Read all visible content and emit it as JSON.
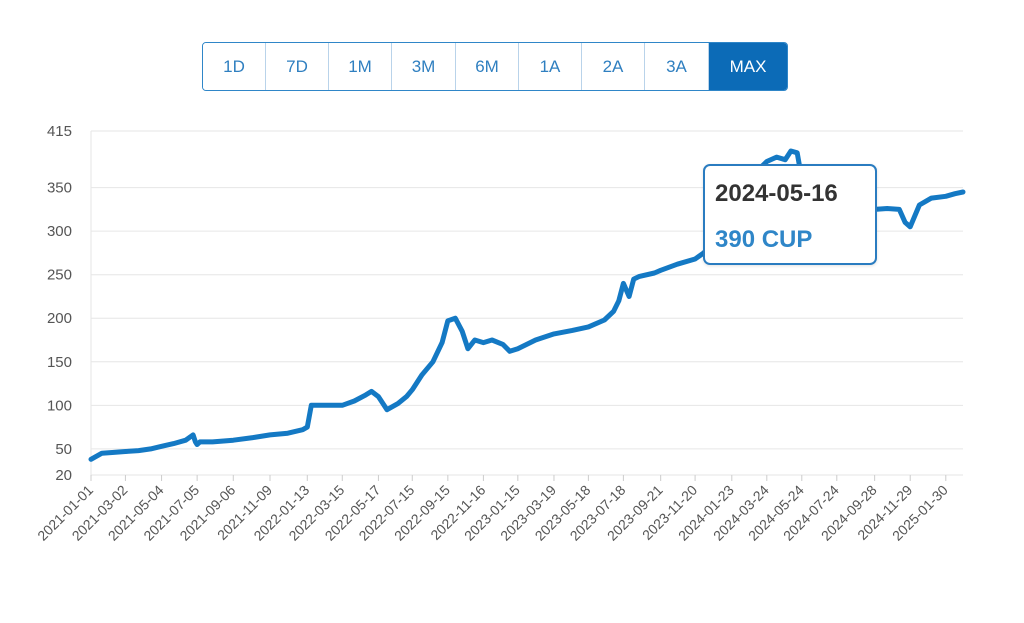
{
  "range_selector": {
    "buttons": [
      "1D",
      "7D",
      "1M",
      "3M",
      "6M",
      "1A",
      "2A",
      "3A",
      "MAX"
    ],
    "active": "MAX"
  },
  "colors": {
    "accent": "#0c6bb7",
    "line": "#1479c4",
    "grid": "#e6e6e6",
    "tooltip_border": "#2a7cc0"
  },
  "tooltip": {
    "date": "2024-05-16",
    "value": "390 CUP"
  },
  "chart_data": {
    "type": "line",
    "title": "",
    "xlabel": "",
    "ylabel": "",
    "grid": true,
    "ylim": [
      20,
      415
    ],
    "y_ticks": [
      20,
      50,
      100,
      150,
      200,
      250,
      300,
      350,
      415
    ],
    "x_ticks": [
      "2021-01-01",
      "2021-03-02",
      "2021-05-04",
      "2021-07-05",
      "2021-09-06",
      "2021-11-09",
      "2022-01-13",
      "2022-03-15",
      "2022-05-17",
      "2022-07-15",
      "2022-09-15",
      "2022-11-16",
      "2023-01-15",
      "2023-03-19",
      "2023-05-18",
      "2023-07-18",
      "2023-09-21",
      "2023-11-20",
      "2024-01-23",
      "2024-03-24",
      "2024-05-24",
      "2024-07-24",
      "2024-09-28",
      "2024-11-29",
      "2025-01-30"
    ],
    "series": [
      {
        "x": [
          "2021-01-01",
          "2021-01-20",
          "2021-02-10",
          "2021-03-02",
          "2021-03-25",
          "2021-04-15",
          "2021-05-04",
          "2021-05-25",
          "2021-06-15",
          "2021-06-28",
          "2021-07-02",
          "2021-07-05",
          "2021-07-10",
          "2021-08-01",
          "2021-09-06",
          "2021-10-10",
          "2021-11-09",
          "2021-12-10",
          "2022-01-05",
          "2022-01-13",
          "2022-01-20",
          "2022-02-15",
          "2022-03-15",
          "2022-04-05",
          "2022-04-25",
          "2022-05-05",
          "2022-05-17",
          "2022-06-01",
          "2022-06-20",
          "2022-07-05",
          "2022-07-15",
          "2022-08-01",
          "2022-08-20",
          "2022-09-05",
          "2022-09-15",
          "2022-09-28",
          "2022-10-10",
          "2022-10-20",
          "2022-11-01",
          "2022-11-16",
          "2022-12-01",
          "2022-12-20",
          "2023-01-01",
          "2023-01-15",
          "2023-02-15",
          "2023-03-19",
          "2023-04-20",
          "2023-05-18",
          "2023-06-15",
          "2023-07-01",
          "2023-07-10",
          "2023-07-18",
          "2023-07-28",
          "2023-08-05",
          "2023-08-15",
          "2023-09-10",
          "2023-09-21",
          "2023-10-20",
          "2023-11-20",
          "2023-12-05",
          "2023-12-20",
          "2024-01-05",
          "2024-01-23",
          "2024-02-10",
          "2024-03-01",
          "2024-03-24",
          "2024-04-10",
          "2024-04-25",
          "2024-05-05",
          "2024-05-16",
          "2024-05-24",
          "2024-06-05",
          "2024-06-20",
          "2024-07-05",
          "2024-07-24",
          "2024-08-15",
          "2024-09-05",
          "2024-09-28",
          "2024-10-20",
          "2024-11-10",
          "2024-11-20",
          "2024-11-29",
          "2024-12-15",
          "2025-01-05",
          "2025-01-30",
          "2025-02-15",
          "2025-03-01"
        ],
        "y": [
          38,
          45,
          46,
          47,
          48,
          50,
          53,
          56,
          60,
          66,
          58,
          55,
          58,
          58,
          60,
          63,
          66,
          68,
          72,
          75,
          100,
          100,
          100,
          105,
          112,
          116,
          110,
          95,
          102,
          110,
          118,
          135,
          150,
          172,
          197,
          200,
          185,
          165,
          175,
          172,
          175,
          170,
          162,
          165,
          175,
          182,
          186,
          190,
          198,
          208,
          220,
          240,
          225,
          245,
          248,
          252,
          255,
          262,
          268,
          275,
          285,
          300,
          320,
          345,
          365,
          380,
          385,
          382,
          392,
          390,
          360,
          370,
          335,
          340,
          345,
          330,
          322,
          325,
          326,
          325,
          310,
          305,
          330,
          338,
          340,
          343,
          345
        ]
      }
    ]
  }
}
